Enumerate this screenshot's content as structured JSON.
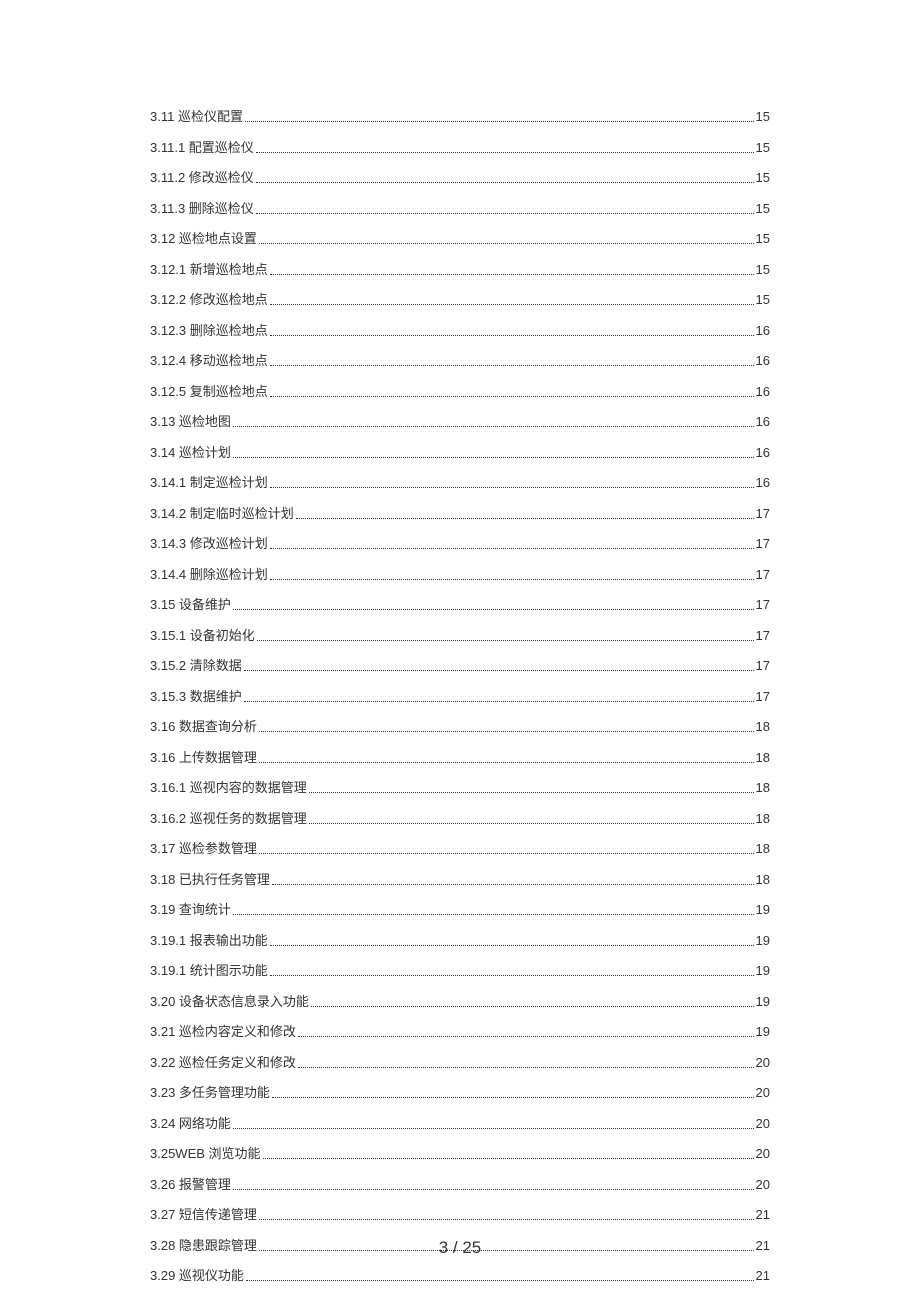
{
  "page_label": "3 / 25",
  "text_color": "#333333",
  "background_color": "#ffffff",
  "font_size_pt": 10,
  "page_number_font_size_pt": 13,
  "toc_entries": [
    {
      "label": "3.11 巡检仪配置",
      "page": "15"
    },
    {
      "label": "3.11.1 配置巡检仪",
      "page": "15"
    },
    {
      "label": "3.11.2 修改巡检仪",
      "page": "15"
    },
    {
      "label": "3.11.3 删除巡检仪",
      "page": "15"
    },
    {
      "label": "3.12 巡检地点设置",
      "page": "15"
    },
    {
      "label": "3.12.1 新增巡检地点",
      "page": "15"
    },
    {
      "label": "3.12.2 修改巡检地点",
      "page": "15"
    },
    {
      "label": "3.12.3 删除巡检地点",
      "page": "16"
    },
    {
      "label": "3.12.4 移动巡检地点",
      "page": "16"
    },
    {
      "label": "3.12.5 复制巡检地点",
      "page": "16"
    },
    {
      "label": "3.13 巡检地图",
      "page": "16"
    },
    {
      "label": "3.14 巡检计划",
      "page": "16"
    },
    {
      "label": "3.14.1 制定巡检计划",
      "page": "16"
    },
    {
      "label": "3.14.2 制定临时巡检计划",
      "page": "17"
    },
    {
      "label": "3.14.3 修改巡检计划",
      "page": "17"
    },
    {
      "label": "3.14.4 删除巡检计划",
      "page": "17"
    },
    {
      "label": "3.15 设备维护",
      "page": "17"
    },
    {
      "label": "3.15.1 设备初始化",
      "page": "17"
    },
    {
      "label": "3.15.2 清除数据",
      "page": "17"
    },
    {
      "label": "3.15.3 数据维护",
      "page": "17"
    },
    {
      "label": "3.16 数据查询分析",
      "page": "18"
    },
    {
      "label": "3.16 上传数据管理",
      "page": "18"
    },
    {
      "label": "3.16.1 巡视内容的数据管理",
      "page": "18"
    },
    {
      "label": "3.16.2 巡视任务的数据管理",
      "page": "18"
    },
    {
      "label": "3.17 巡检参数管理",
      "page": "18"
    },
    {
      "label": "3.18 已执行任务管理",
      "page": "18"
    },
    {
      "label": "3.19 查询统计",
      "page": "19"
    },
    {
      "label": "3.19.1 报表输出功能",
      "page": "19"
    },
    {
      "label": "3.19.1 统计图示功能",
      "page": "19"
    },
    {
      "label": "3.20 设备状态信息录入功能",
      "page": "19"
    },
    {
      "label": "3.21 巡检内容定义和修改",
      "page": "19"
    },
    {
      "label": "3.22 巡检任务定义和修改",
      "page": "20"
    },
    {
      "label": "3.23 多任务管理功能",
      "page": "20"
    },
    {
      "label": "3.24 网络功能",
      "page": "20"
    },
    {
      "label": "3.25WEB 浏览功能",
      "page": "20"
    },
    {
      "label": "3.26 报警管理",
      "page": "20"
    },
    {
      "label": "3.27 短信传递管理",
      "page": "21"
    },
    {
      "label": "3.28 隐患跟踪管理",
      "page": "21"
    },
    {
      "label": "3.29 巡视仪功能",
      "page": "21"
    }
  ]
}
